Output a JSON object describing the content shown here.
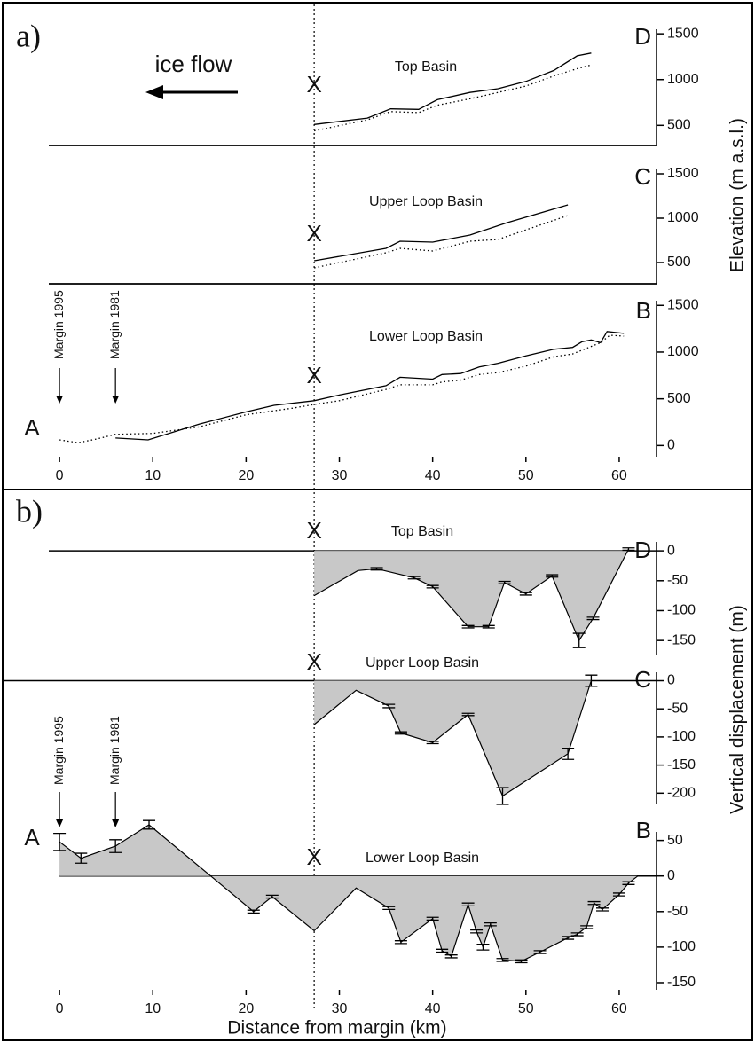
{
  "panels": [
    {
      "label": "a)",
      "y_label": "Elevation (m a.s.l.)"
    },
    {
      "label": "b)",
      "y_label": "Vertical displacement (m)"
    }
  ],
  "x_label": "Distance from margin (km)",
  "xlim": [
    -6,
    64
  ],
  "xticks": [
    0,
    10,
    20,
    30,
    40,
    50,
    60
  ],
  "marker_x": 27.3,
  "marker_label": "X",
  "ice_flow_label": "ice flow",
  "start_label": "A",
  "margins": [
    {
      "label": "Margin 1995",
      "x": 0
    },
    {
      "label": "Margin 1981",
      "x": 6
    }
  ],
  "chart_data": [
    {
      "type": "line",
      "title": "Top Basin",
      "side_label": "D",
      "ylim": [
        280,
        1550
      ],
      "yticks": [
        500,
        1000,
        1500
      ],
      "series": [
        {
          "color": "#000000",
          "style": "solid",
          "x": [
            27.3,
            33,
            35.5,
            38.5,
            40.5,
            44,
            47,
            50,
            53,
            55.5,
            57
          ],
          "values": [
            510,
            580,
            680,
            675,
            780,
            860,
            900,
            980,
            1100,
            1260,
            1290
          ]
        },
        {
          "color": "#000000",
          "style": "dotted",
          "x": [
            27.3,
            33,
            35.5,
            38.5,
            40.5,
            44,
            47,
            50,
            53,
            55.5,
            57
          ],
          "values": [
            440,
            560,
            650,
            640,
            720,
            790,
            860,
            930,
            1040,
            1120,
            1160
          ]
        }
      ]
    },
    {
      "type": "line",
      "title": "Upper Loop Basin",
      "side_label": "C",
      "ylim": [
        260,
        1550
      ],
      "yticks": [
        500,
        1000,
        1500
      ],
      "series": [
        {
          "color": "#000000",
          "style": "solid",
          "x": [
            27.3,
            35,
            36.5,
            40,
            44,
            48,
            54.5
          ],
          "values": [
            520,
            660,
            740,
            730,
            810,
            950,
            1150
          ]
        },
        {
          "color": "#000000",
          "style": "dotted",
          "x": [
            27.3,
            35,
            36.5,
            40,
            44,
            47,
            54.5
          ],
          "values": [
            440,
            610,
            660,
            630,
            740,
            760,
            1030
          ]
        }
      ]
    },
    {
      "type": "line",
      "title": "Lower Loop Basin",
      "side_label": "B",
      "ylim": [
        -120,
        1550
      ],
      "yticks": [
        0,
        500,
        1000,
        1500
      ],
      "series": [
        {
          "color": "#000000",
          "style": "solid",
          "x": [
            6,
            9.5,
            15,
            20,
            23,
            27.3,
            30,
            35,
            36.5,
            40,
            41,
            43,
            45,
            47,
            50,
            53,
            55,
            56,
            57,
            58,
            58.7,
            60.5
          ],
          "values": [
            80,
            60,
            230,
            360,
            430,
            480,
            540,
            640,
            730,
            710,
            760,
            770,
            840,
            880,
            960,
            1030,
            1050,
            1110,
            1130,
            1100,
            1220,
            1200
          ]
        },
        {
          "color": "#000000",
          "style": "dotted",
          "x": [
            0,
            2,
            4,
            6,
            10,
            15,
            20,
            25,
            27.3,
            30,
            35,
            36.5,
            40,
            41,
            43,
            45,
            47,
            50,
            53,
            55,
            57,
            58,
            59,
            60.5
          ],
          "values": [
            60,
            30,
            70,
            120,
            130,
            200,
            330,
            400,
            440,
            480,
            600,
            650,
            650,
            680,
            700,
            760,
            780,
            850,
            950,
            980,
            1060,
            1100,
            1180,
            1170
          ]
        }
      ]
    },
    {
      "type": "area",
      "title": "Top Basin",
      "side_label": "D",
      "ylim": [
        -175,
        15
      ],
      "yticks": [
        0,
        -50,
        -100,
        -150
      ],
      "color": "#c8c8c8",
      "x": [
        27.3,
        32,
        34,
        38,
        40,
        43.8,
        46,
        47.7,
        50,
        52.8,
        55.7,
        57.2,
        61
      ],
      "values": [
        -75,
        -33,
        -30,
        -45,
        -60,
        -127,
        -127,
        -53,
        -72,
        -42,
        -150,
        -113,
        3
      ],
      "errors": [
        null,
        null,
        2,
        2,
        2,
        2,
        2,
        2,
        2,
        2,
        12,
        2,
        2
      ]
    },
    {
      "type": "area",
      "title": "Upper Loop Basin",
      "side_label": "C",
      "ylim": [
        -220,
        15
      ],
      "yticks": [
        0,
        -50,
        -100,
        -150,
        -200
      ],
      "color": "#c8c8c8",
      "x": [
        27.3,
        31.8,
        35.3,
        36.6,
        40,
        43.8,
        47.5,
        54.5,
        57
      ],
      "values": [
        -78,
        -17,
        -45,
        -93,
        -110,
        -60,
        -205,
        -130,
        0
      ],
      "errors": [
        null,
        null,
        3,
        2,
        2,
        2,
        15,
        10,
        10
      ]
    },
    {
      "type": "area",
      "title": "Lower Loop Basin",
      "side_label": "B",
      "ylim": [
        -160,
        62
      ],
      "yticks": [
        50,
        0,
        -50,
        -100,
        -150
      ],
      "color": "#c8c8c8",
      "x": [
        0,
        2.3,
        6,
        9.6,
        20.8,
        22.8,
        27.3,
        31.8,
        35.3,
        36.6,
        40,
        41,
        42,
        43.8,
        44.7,
        45.4,
        46.2,
        47.5,
        49.5,
        51.5,
        54.5,
        55.5,
        56.5,
        57.3,
        58.2,
        60,
        61,
        62
      ],
      "values": [
        48,
        25,
        42,
        72,
        -50,
        -29,
        -77,
        -17,
        -45,
        -93,
        -60,
        -105,
        -113,
        -40,
        -78,
        -100,
        -68,
        -118,
        -120,
        -107,
        -87,
        -82,
        -72,
        -38,
        -47,
        -26,
        -10,
        0
      ],
      "errors": [
        12,
        7,
        9,
        6,
        2,
        2,
        null,
        null,
        2,
        2,
        2,
        2,
        2,
        2,
        2,
        4,
        2,
        2,
        2,
        2,
        2,
        2,
        2,
        2,
        2,
        2,
        2,
        null
      ]
    }
  ]
}
